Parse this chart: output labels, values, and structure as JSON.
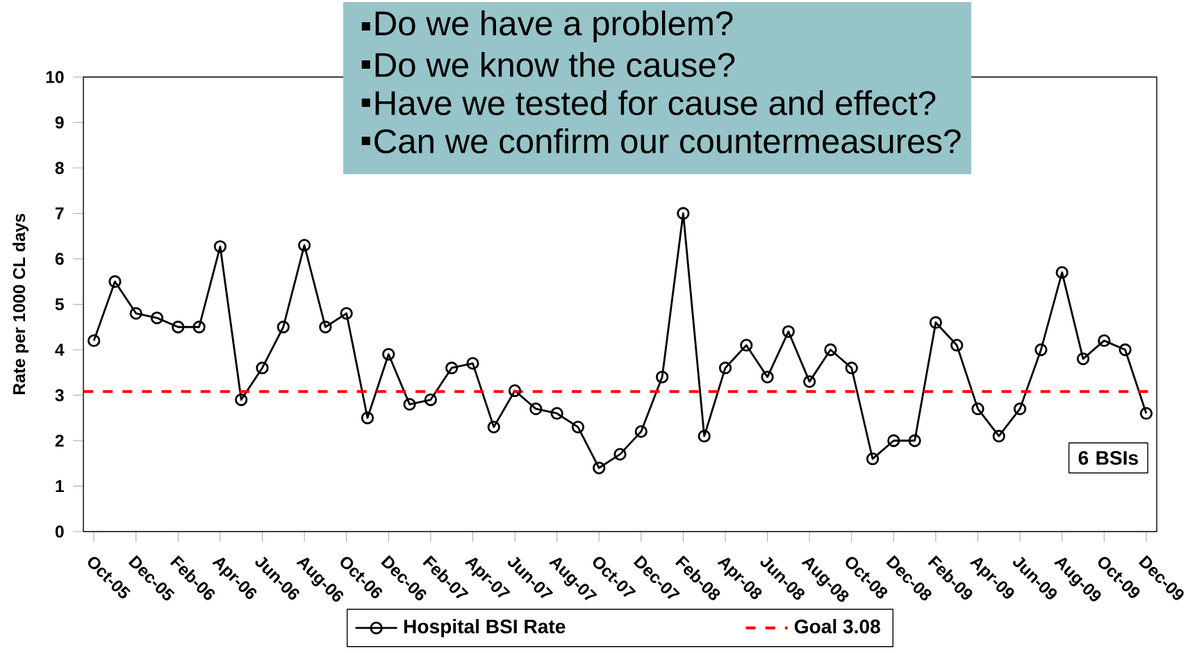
{
  "chart_data": {
    "type": "line",
    "ylabel": "Rate per 1000 CL days",
    "categories": [
      "Oct-05",
      null,
      "Dec-05",
      null,
      "Feb-06",
      null,
      "Apr-06",
      null,
      "Jun-06",
      null,
      "Aug-06",
      null,
      "Oct-06",
      null,
      "Dec-06",
      null,
      "Feb-07",
      null,
      "Apr-07",
      null,
      "Jun-07",
      null,
      "Aug-07",
      null,
      "Oct-07",
      null,
      "Dec-07",
      null,
      "Feb-08",
      null,
      "Apr-08",
      null,
      "Jun-08",
      null,
      "Aug-08",
      null,
      "Oct-08",
      null,
      "Dec-08",
      null,
      "Feb-09",
      null,
      "Apr-09",
      null,
      "Jun-09",
      null,
      "Aug-09",
      null,
      "Oct-09",
      null,
      "Dec-09"
    ],
    "series": [
      {
        "name": "Hospital BSI Rate",
        "color": "#000000",
        "values": [
          4.2,
          5.5,
          4.8,
          4.7,
          4.5,
          4.5,
          6.27,
          2.9,
          3.6,
          4.5,
          6.3,
          4.5,
          4.8,
          2.5,
          3.9,
          2.8,
          2.9,
          3.6,
          3.7,
          2.3,
          3.1,
          2.7,
          2.6,
          2.3,
          1.4,
          1.7,
          2.2,
          3.4,
          7.0,
          2.1,
          3.6,
          4.1,
          3.4,
          4.4,
          3.3,
          4.0,
          3.6,
          1.6,
          2.0,
          2.0,
          4.6,
          4.1,
          2.7,
          2.1,
          2.7,
          4.0,
          5.7,
          3.8,
          4.2,
          4.0,
          2.6
        ]
      }
    ],
    "ylim": [
      0,
      10
    ],
    "yticks": [
      0,
      1,
      2,
      3,
      4,
      5,
      6,
      7,
      8,
      9,
      10
    ],
    "ref_lines": [
      {
        "axis": "y",
        "value": 3.08,
        "label": "Goal 3.08",
        "color": "#ff0000",
        "line_style": "dashed"
      }
    ],
    "annotations": [
      "Do we have a problem?",
      "Do we know the cause?",
      "Have we tested for cause and effect?",
      "Can we confirm our countermeasures?",
      "6 BSIs"
    ],
    "marker": "circle",
    "line_style": "solid",
    "grid": false,
    "legend": "bottom"
  }
}
